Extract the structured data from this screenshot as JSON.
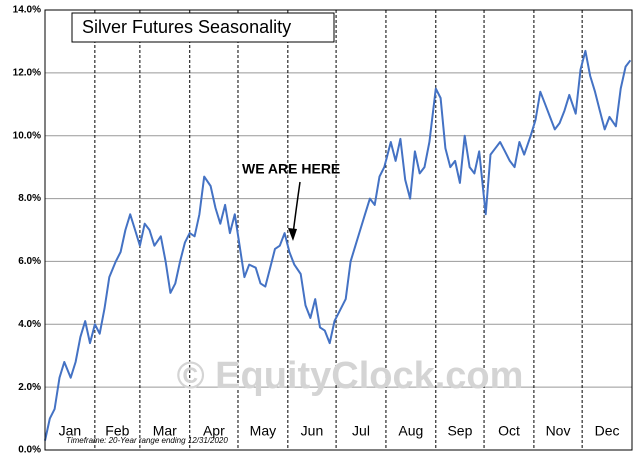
{
  "chart_data": {
    "type": "line",
    "title": "Silver Futures Seasonality",
    "annotation": "WE ARE HERE",
    "watermark": "© EquityClock.com",
    "footnote": "Timeframe:  20-Year range ending 12/31/2020",
    "xlim": [
      1,
      366
    ],
    "xticks": [
      {
        "value": 1,
        "label": "Jan"
      },
      {
        "value": 32,
        "label": "Feb"
      },
      {
        "value": 60,
        "label": "Mar"
      },
      {
        "value": 91,
        "label": "Apr"
      },
      {
        "value": 121,
        "label": "May"
      },
      {
        "value": 152,
        "label": "Jun"
      },
      {
        "value": 182,
        "label": "Jul"
      },
      {
        "value": 213,
        "label": "Aug"
      },
      {
        "value": 244,
        "label": "Sep"
      },
      {
        "value": 274,
        "label": "Oct"
      },
      {
        "value": 305,
        "label": "Nov"
      },
      {
        "value": 335,
        "label": "Dec"
      }
    ],
    "ylim": [
      0,
      14
    ],
    "yticks": [
      {
        "value": 0,
        "label": "0.0%"
      },
      {
        "value": 2,
        "label": "2.0%"
      },
      {
        "value": 4,
        "label": "4.0%"
      },
      {
        "value": 6,
        "label": "6.0%"
      },
      {
        "value": 8,
        "label": "8.0%"
      },
      {
        "value": 10,
        "label": "10.0%"
      },
      {
        "value": 12,
        "label": "12.0%"
      },
      {
        "value": 14,
        "label": "14.0%"
      }
    ],
    "grid": true,
    "color": "#4472c4",
    "x": [
      1,
      4,
      7,
      10,
      13,
      17,
      20,
      23,
      26,
      29,
      32,
      35,
      38,
      41,
      45,
      48,
      51,
      54,
      57,
      60,
      63,
      66,
      69,
      73,
      76,
      79,
      82,
      85,
      88,
      91,
      94,
      97,
      100,
      104,
      107,
      110,
      113,
      116,
      119,
      122,
      125,
      128,
      132,
      135,
      138,
      141,
      144,
      147,
      150,
      153,
      156,
      160,
      163,
      166,
      169,
      172,
      175,
      178,
      181,
      184,
      188,
      191,
      194,
      197,
      200,
      203,
      206,
      209,
      212,
      216,
      219,
      222,
      225,
      228,
      231,
      234,
      237,
      240,
      244,
      247,
      250,
      253,
      256,
      259,
      262,
      265,
      268,
      271,
      275,
      278,
      281,
      284,
      287,
      290,
      293,
      296,
      299,
      303,
      306,
      309,
      312,
      315,
      318,
      321,
      324,
      327,
      331,
      334,
      337,
      340,
      343,
      346,
      349,
      352,
      356,
      359,
      362,
      365
    ],
    "values": [
      0.3,
      1.0,
      1.3,
      2.3,
      2.8,
      2.3,
      2.8,
      3.6,
      4.1,
      3.4,
      4.0,
      3.7,
      4.5,
      5.5,
      6.0,
      6.3,
      7.0,
      7.5,
      7.0,
      6.5,
      7.2,
      7.0,
      6.5,
      6.8,
      6.0,
      5.0,
      5.3,
      6.0,
      6.6,
      6.9,
      6.8,
      7.5,
      8.7,
      8.4,
      7.7,
      7.2,
      7.8,
      6.9,
      7.5,
      6.5,
      5.5,
      5.9,
      5.8,
      5.3,
      5.2,
      5.8,
      6.4,
      6.5,
      6.9,
      6.3,
      5.9,
      5.6,
      4.6,
      4.2,
      4.8,
      3.9,
      3.8,
      3.4,
      4.1,
      4.4,
      4.8,
      6.0,
      6.5,
      7.0,
      7.5,
      8.0,
      7.8,
      8.7,
      9.0,
      9.8,
      9.2,
      9.9,
      8.6,
      8.0,
      9.5,
      8.8,
      9.0,
      9.8,
      11.5,
      11.2,
      9.6,
      9.0,
      9.2,
      8.5,
      10.0,
      9.0,
      8.8,
      9.5,
      7.5,
      9.4,
      9.6,
      9.8,
      9.5,
      9.2,
      9.0,
      9.8,
      9.4,
      10.0,
      10.5,
      11.4,
      11.0,
      10.6,
      10.2,
      10.4,
      10.8,
      11.3,
      10.7,
      12.1,
      12.7,
      11.9,
      11.4,
      10.8,
      10.2,
      10.6,
      10.3,
      11.5,
      12.2,
      12.4
    ]
  }
}
